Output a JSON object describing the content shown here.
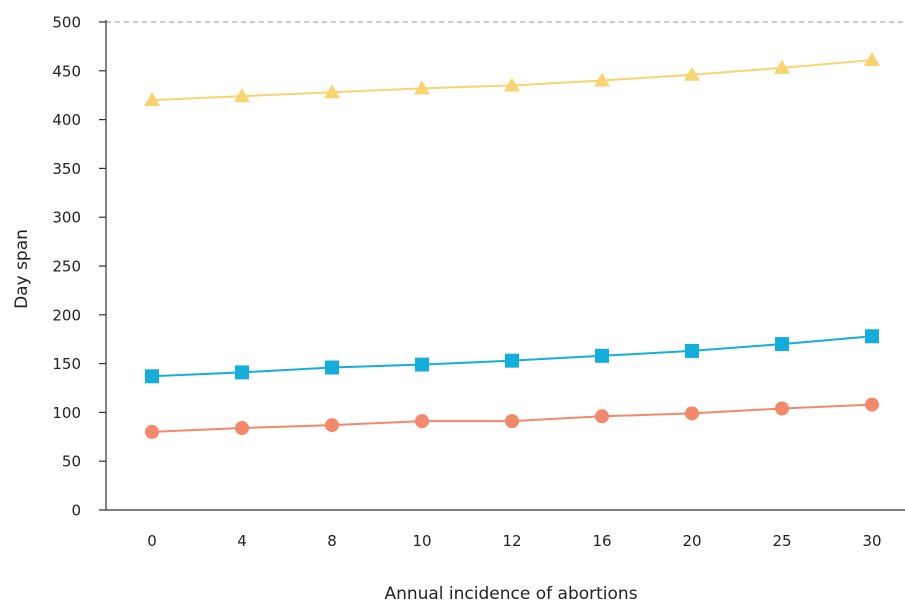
{
  "chart_data": {
    "type": "line",
    "x_categories": [
      "0",
      "4",
      "8",
      "10",
      "12",
      "16",
      "20",
      "25",
      "30"
    ],
    "xlabel": "Annual incidence of abortions",
    "ylabel": "Day span",
    "ylim": [
      0,
      500
    ],
    "yticks": [
      0,
      50,
      100,
      150,
      200,
      250,
      300,
      350,
      400,
      450,
      500
    ],
    "grid": "dashed line at top (500) only",
    "legend": "none",
    "series": [
      {
        "marker": "triangle",
        "color": "#F7D470",
        "values": [
          420,
          424,
          428,
          432,
          435,
          440,
          446,
          453,
          461
        ]
      },
      {
        "marker": "square",
        "color": "#14AEDD",
        "values": [
          137,
          141,
          146,
          149,
          153,
          158,
          163,
          170,
          178
        ]
      },
      {
        "marker": "circle",
        "color": "#F4886A",
        "values": [
          80,
          84,
          87,
          91,
          91,
          96,
          99,
          104,
          108
        ]
      }
    ]
  }
}
